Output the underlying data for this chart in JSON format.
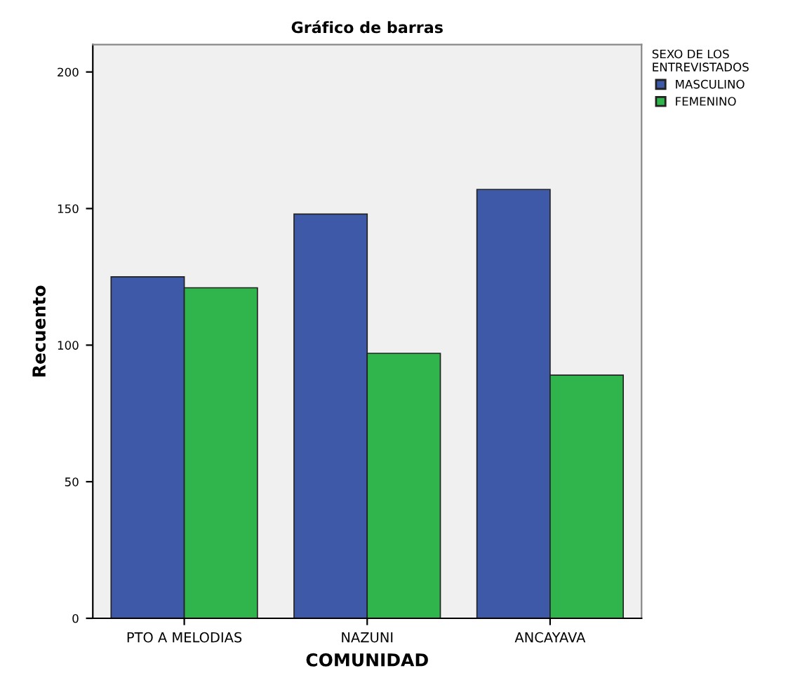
{
  "chart_data": {
    "type": "bar",
    "title": "Gráfico de barras",
    "xlabel": "COMUNIDAD",
    "ylabel": "Recuento",
    "legend_title": "SEXO DE LOS\nENTREVISTADOS",
    "categories": [
      "PTO A MELODIAS",
      "NAZUNI",
      "ANCAYAVA"
    ],
    "series": [
      {
        "name": "MASCULINO",
        "color": "#3e59a8",
        "values": [
          125,
          148,
          157
        ]
      },
      {
        "name": "FEMENINO",
        "color": "#2fb54c",
        "values": [
          121,
          97,
          89
        ]
      }
    ],
    "ylim": [
      0,
      210
    ],
    "yticks": [
      0,
      50,
      100,
      150,
      200
    ],
    "grid": false,
    "legend": "top right"
  }
}
